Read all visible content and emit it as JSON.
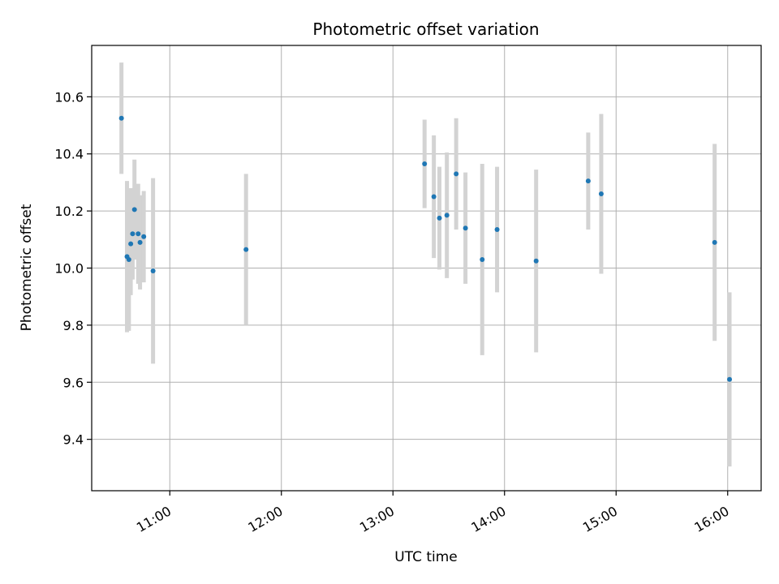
{
  "chart_data": {
    "type": "scatter",
    "title": "Photometric offset variation",
    "xlabel": "UTC time",
    "ylabel": "Photometric offset",
    "x_axis_kind": "time",
    "xlim": [
      "10:18",
      "16:18"
    ],
    "ylim": [
      9.22,
      10.78
    ],
    "xticks": [
      "11:00",
      "12:00",
      "13:00",
      "14:00",
      "15:00",
      "16:00"
    ],
    "yticks": [
      9.4,
      9.6,
      9.8,
      10.0,
      10.2,
      10.4,
      10.6
    ],
    "xtick_labels": [
      "11:00",
      "12:00",
      "13:00",
      "14:00",
      "15:00",
      "16:00"
    ],
    "ytick_labels": [
      "9.4",
      "9.6",
      "9.8",
      "10.0",
      "10.2",
      "10.4",
      "10.6"
    ],
    "grid": true,
    "marker_color": "#1f77b4",
    "errorbar_color": "#d3d3d3",
    "points": [
      {
        "t": "10:34",
        "y": 10.525,
        "err": 0.195
      },
      {
        "t": "10:37",
        "y": 10.04,
        "err": 0.265
      },
      {
        "t": "10:38",
        "y": 10.03,
        "err": 0.25
      },
      {
        "t": "10:39",
        "y": 10.085,
        "err": 0.18
      },
      {
        "t": "10:40",
        "y": 10.12,
        "err": 0.16
      },
      {
        "t": "10:41",
        "y": 10.205,
        "err": 0.175
      },
      {
        "t": "10:43",
        "y": 10.12,
        "err": 0.175
      },
      {
        "t": "10:44",
        "y": 10.09,
        "err": 0.165
      },
      {
        "t": "10:46",
        "y": 10.11,
        "err": 0.16
      },
      {
        "t": "10:51",
        "y": 9.99,
        "err": 0.325
      },
      {
        "t": "11:41",
        "y": 10.065,
        "err": 0.265
      },
      {
        "t": "13:17",
        "y": 10.365,
        "err": 0.155
      },
      {
        "t": "13:22",
        "y": 10.25,
        "err": 0.215
      },
      {
        "t": "13:25",
        "y": 10.175,
        "err": 0.18
      },
      {
        "t": "13:29",
        "y": 10.185,
        "err": 0.22
      },
      {
        "t": "13:34",
        "y": 10.33,
        "err": 0.195
      },
      {
        "t": "13:39",
        "y": 10.14,
        "err": 0.195
      },
      {
        "t": "13:48",
        "y": 10.03,
        "err": 0.335
      },
      {
        "t": "13:56",
        "y": 10.135,
        "err": 0.22
      },
      {
        "t": "14:17",
        "y": 10.025,
        "err": 0.32
      },
      {
        "t": "14:45",
        "y": 10.305,
        "err": 0.17
      },
      {
        "t": "14:52",
        "y": 10.26,
        "err": 0.28
      },
      {
        "t": "15:53",
        "y": 10.09,
        "err": 0.345
      },
      {
        "t": "16:01",
        "y": 9.61,
        "err": 0.305
      }
    ]
  }
}
